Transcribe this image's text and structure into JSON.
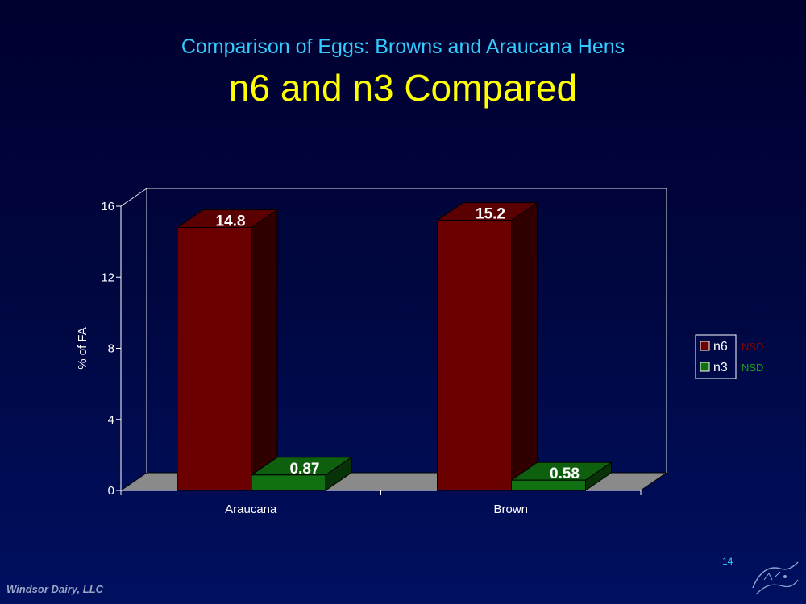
{
  "slide": {
    "subtitle": "Comparison of Eggs: Browns and Araucana Hens",
    "title": "n6 and n3 Compared",
    "footer": "Windsor Dairy, LLC",
    "page_number": "14"
  },
  "colors": {
    "n6": "#6b0000",
    "n3": "#117011",
    "nsd_n6": "#8b0000",
    "nsd_n3": "#1ea01e"
  },
  "chart_data": {
    "type": "bar",
    "title": "",
    "xlabel": "",
    "ylabel": "% of FA",
    "ylim": [
      0,
      16
    ],
    "yticks": [
      0,
      4,
      8,
      12,
      16
    ],
    "categories": [
      "Araucana",
      "Brown"
    ],
    "series": [
      {
        "name": "n6",
        "values": [
          14.8,
          15.2
        ],
        "labels": [
          "14.8",
          "15.2"
        ],
        "note": "NSD"
      },
      {
        "name": "n3",
        "values": [
          0.87,
          0.58
        ],
        "labels": [
          "0.87",
          "0.58"
        ],
        "note": "NSD"
      }
    ],
    "legend_position": "right",
    "style": "3d"
  }
}
